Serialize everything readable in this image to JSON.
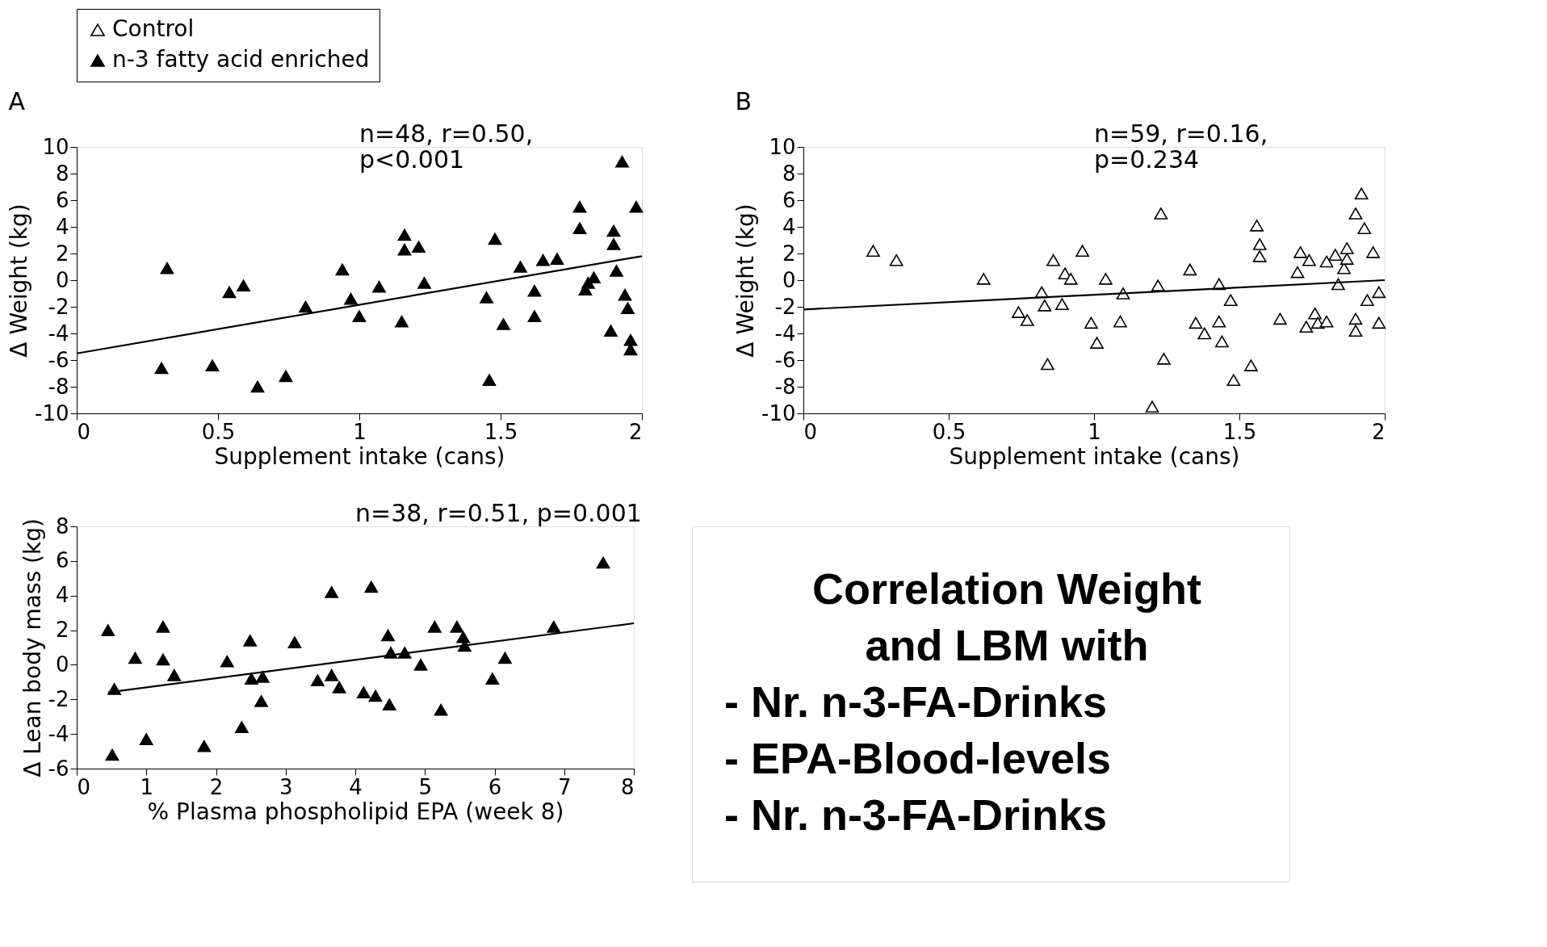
{
  "chart_data": [
    {
      "type": "scatter",
      "title": "A",
      "xlabel": "Supplement intake (cans)",
      "ylabel": "Δ Weight (kg)",
      "xlim": [
        0,
        2
      ],
      "xticks": [
        0,
        0.5,
        1,
        1.5,
        2
      ],
      "ylim": [
        -10,
        10
      ],
      "yticks": [
        -10,
        -8,
        -6,
        -4,
        -2,
        0,
        2,
        4,
        6,
        8,
        10
      ],
      "grid": false,
      "legend": "top",
      "marker": "triangle",
      "annotations": [
        "n=48, r=0.50,\np<0.001"
      ],
      "series": [
        {
          "name": "n-3 fatty acid enriched",
          "color": "#000000",
          "x": [
            0.32,
            0.3,
            0.48,
            0.54,
            0.59,
            0.64,
            0.74,
            0.81,
            0.94,
            0.97,
            1.0,
            1.07,
            1.16,
            1.16,
            1.21,
            1.15,
            1.23,
            1.45,
            1.46,
            1.48,
            1.51,
            1.57,
            1.62,
            1.62,
            1.65,
            1.7,
            1.78,
            1.78,
            1.8,
            1.81,
            1.83,
            1.9,
            1.9,
            1.91,
            1.93,
            1.94,
            1.95,
            1.89,
            1.96,
            1.96,
            1.98
          ],
          "values": [
            0.9,
            -6.6,
            -6.4,
            -0.9,
            -0.4,
            -8.0,
            -7.2,
            -2.0,
            0.8,
            -1.4,
            -2.7,
            -0.5,
            3.4,
            2.3,
            2.5,
            -3.1,
            -0.2,
            -1.3,
            -7.5,
            3.1,
            -3.3,
            1.0,
            -0.8,
            -2.7,
            1.5,
            1.6,
            5.5,
            3.9,
            -0.7,
            -0.2,
            0.2,
            3.7,
            2.7,
            0.7,
            8.9,
            -1.1,
            -2.1,
            -3.8,
            -4.5,
            -5.2,
            5.5
          ]
        },
        {
          "type": "line",
          "marker": "none",
          "color": "#000000",
          "x": [
            0,
            2
          ],
          "values": [
            -5.5,
            1.8
          ]
        }
      ]
    },
    {
      "type": "scatter",
      "title": "B",
      "xlabel": "Supplement intake (cans)",
      "ylabel": "Δ Weight (kg)",
      "xlim": [
        0,
        2
      ],
      "xticks": [
        0,
        0.5,
        1,
        1.5,
        2
      ],
      "ylim": [
        -10,
        10
      ],
      "yticks": [
        -10,
        -8,
        -6,
        -4,
        -2,
        0,
        2,
        4,
        6,
        8,
        10
      ],
      "grid": false,
      "legend": "top",
      "marker": "triangle",
      "annotations": [
        "n=59, r=0.16,\np=0.234"
      ],
      "series": [
        {
          "name": "Control",
          "color": "#ffffff",
          "x": [
            0.24,
            0.32,
            0.62,
            0.74,
            0.77,
            0.82,
            0.83,
            0.86,
            0.84,
            0.89,
            0.9,
            0.92,
            0.96,
            0.99,
            1.01,
            1.04,
            1.1,
            1.09,
            1.2,
            1.23,
            1.22,
            1.24,
            1.33,
            1.35,
            1.38,
            1.43,
            1.43,
            1.44,
            1.47,
            1.48,
            1.54,
            1.56,
            1.57,
            1.57,
            1.64,
            1.7,
            1.71,
            1.74,
            1.73,
            1.76,
            1.77,
            1.8,
            1.8,
            1.83,
            1.84,
            1.86,
            1.87,
            1.87,
            1.9,
            1.9,
            1.9,
            1.92,
            1.93,
            1.94,
            1.96,
            1.98,
            1.98
          ],
          "values": [
            2.2,
            1.5,
            0.1,
            -2.4,
            -3.0,
            -0.9,
            -1.9,
            1.5,
            -6.3,
            -1.8,
            0.5,
            0.1,
            2.2,
            -3.2,
            -4.7,
            0.1,
            -1.0,
            -3.1,
            -9.5,
            5.0,
            -0.4,
            -5.9,
            0.8,
            -3.2,
            -4.0,
            -0.3,
            -3.1,
            -4.6,
            -1.5,
            -7.5,
            -6.4,
            4.1,
            2.7,
            1.8,
            -2.9,
            0.6,
            2.1,
            1.5,
            -3.5,
            -2.5,
            -3.2,
            -3.1,
            1.4,
            1.9,
            -0.3,
            0.9,
            1.6,
            2.4,
            -2.9,
            -3.8,
            5.0,
            6.5,
            3.9,
            -1.5,
            2.1,
            -0.9,
            -3.2
          ]
        },
        {
          "type": "line",
          "marker": "none",
          "color": "#000000",
          "x": [
            0,
            2
          ],
          "values": [
            -2.2,
            0.0
          ]
        }
      ]
    },
    {
      "type": "scatter",
      "xlabel": "% Plasma phospholipid EPA (week 8)",
      "ylabel": "Δ Lean body mass (kg)",
      "xlim": [
        0,
        8
      ],
      "xticks": [
        0,
        1,
        2,
        3,
        4,
        5,
        6,
        7,
        8
      ],
      "ylim": [
        -6,
        8
      ],
      "yticks": [
        -6,
        -4,
        -2,
        0,
        2,
        4,
        6,
        8
      ],
      "grid": false,
      "marker": "triangle",
      "annotations": [
        "n=38, r=0.51, p=0.001"
      ],
      "series": [
        {
          "color": "#000000",
          "x": [
            0.45,
            0.51,
            0.54,
            0.84,
            1.0,
            1.24,
            1.24,
            1.4,
            1.83,
            2.16,
            2.37,
            2.49,
            2.51,
            2.67,
            2.65,
            3.13,
            3.46,
            3.66,
            3.66,
            3.77,
            4.12,
            4.23,
            4.29,
            4.47,
            4.49,
            4.51,
            4.71,
            4.94,
            5.14,
            5.23,
            5.46,
            5.55,
            5.57,
            5.97,
            6.15,
            6.85,
            7.56
          ],
          "values": [
            2.0,
            -5.2,
            -1.4,
            0.4,
            -4.3,
            2.2,
            0.3,
            -0.6,
            -4.7,
            0.2,
            -3.6,
            1.4,
            -0.8,
            -0.7,
            -2.1,
            1.3,
            -0.9,
            4.2,
            -0.6,
            -1.3,
            -1.6,
            4.5,
            -1.8,
            1.7,
            -2.3,
            0.7,
            0.7,
            0.0,
            2.2,
            -2.6,
            2.2,
            1.6,
            1.1,
            -0.8,
            0.4,
            2.2,
            5.9
          ]
        },
        {
          "type": "line",
          "marker": "none",
          "color": "#000000",
          "x": [
            0.45,
            8
          ],
          "values": [
            -1.6,
            2.4
          ]
        }
      ]
    },
    {
      "type": "other",
      "title": "Correlation Weight\nand LBM with",
      "annotations": [
        "- Nr. n-3-FA-Drinks",
        "- EPA-Blood-levels",
        "- Nr. n-3-FA-Drinks"
      ]
    }
  ]
}
